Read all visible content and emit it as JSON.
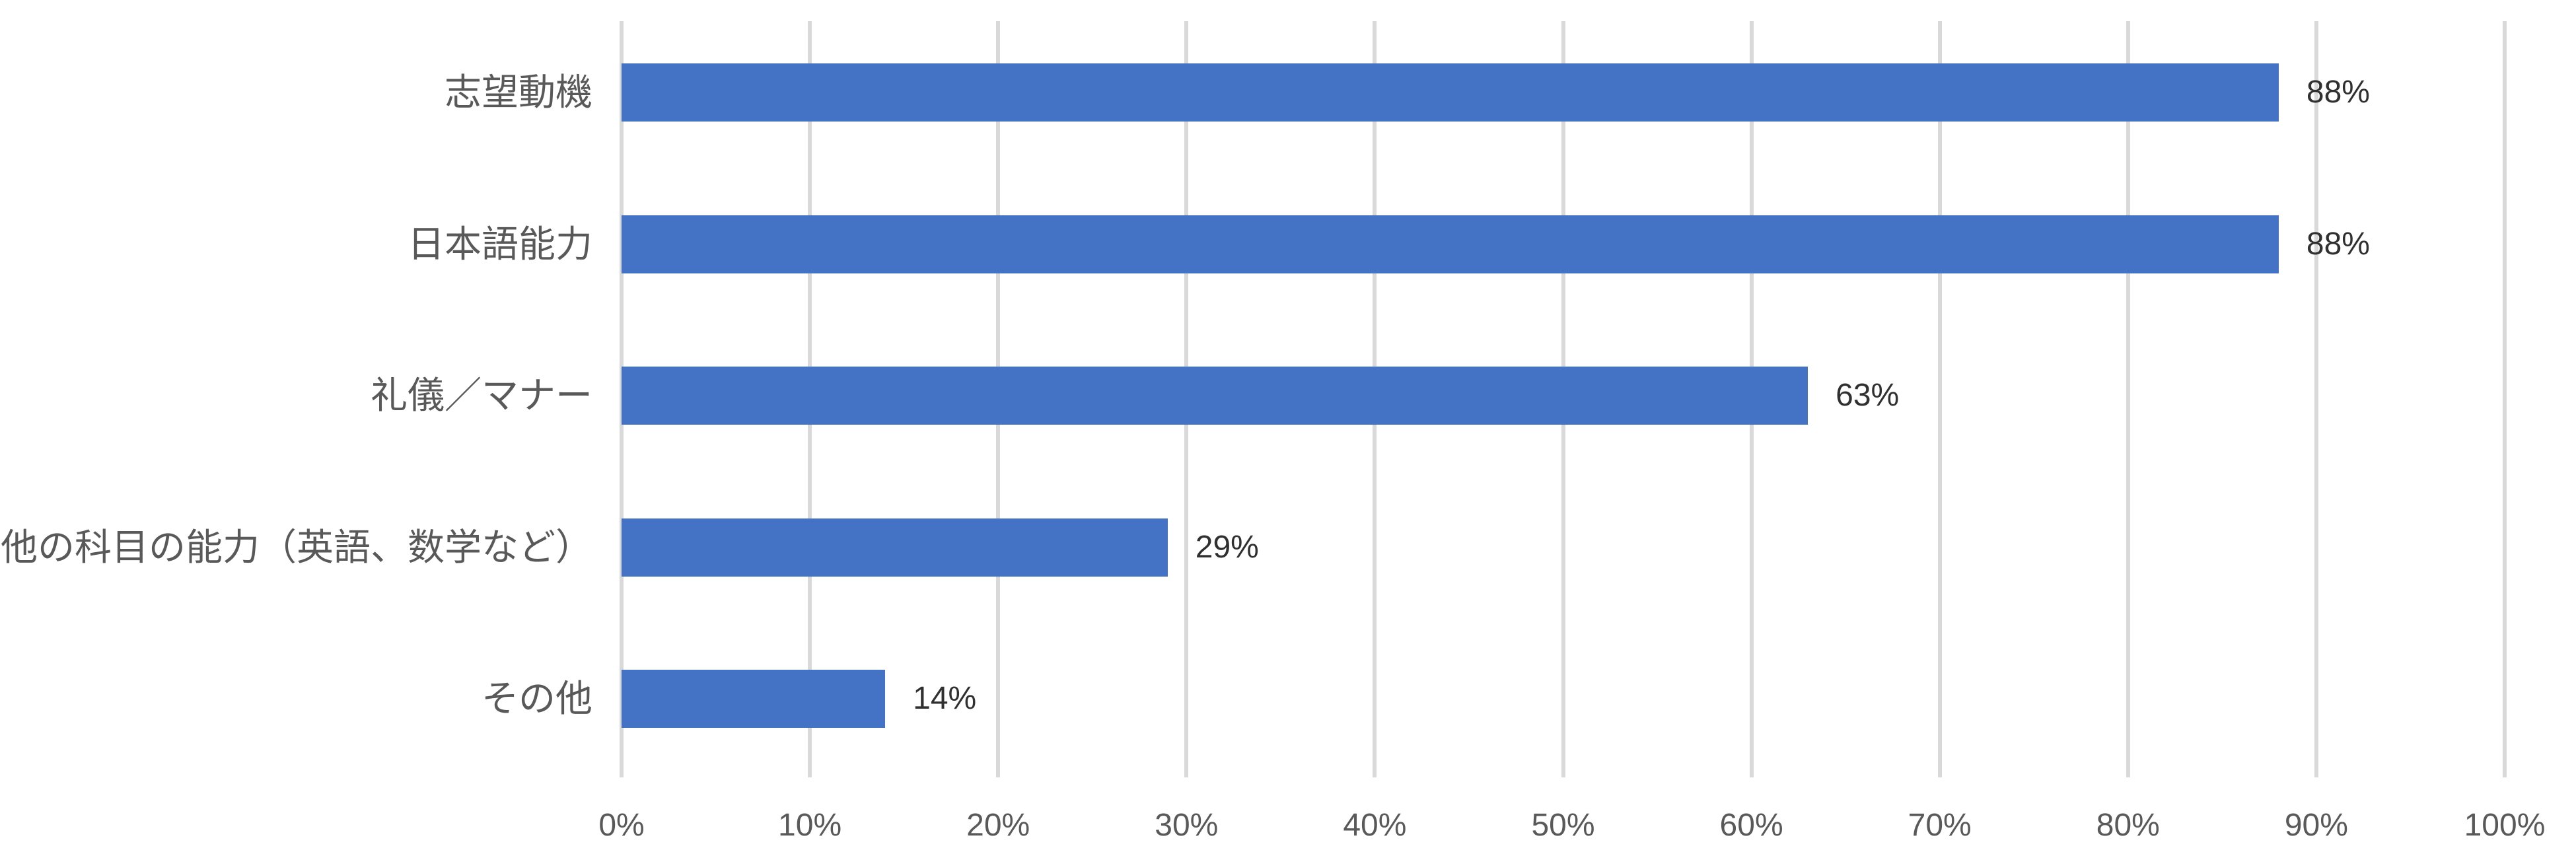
{
  "chart_data": {
    "type": "bar",
    "orientation": "horizontal",
    "title": "",
    "xlabel": "",
    "ylabel": "",
    "categories": [
      "志望動機",
      "日本語能力",
      "礼儀／マナー",
      "他の科目の能力（英語、数学など）",
      "その他"
    ],
    "values": [
      88,
      88,
      63,
      29,
      14
    ],
    "value_labels": [
      "88%",
      "88%",
      "63%",
      "29%",
      "14%"
    ],
    "xlim": [
      0,
      100
    ],
    "x_tick_values": [
      0,
      10,
      20,
      30,
      40,
      50,
      60,
      70,
      80,
      90,
      100
    ],
    "x_ticks": [
      "0%",
      "10%",
      "20%",
      "30%",
      "40%",
      "50%",
      "60%",
      "70%",
      "80%",
      "90%",
      "100%"
    ],
    "grid": "vertical-gridlines-on",
    "legend": "none",
    "colors": {
      "bar": "#4472C4",
      "gridline": "#D9D9D9",
      "axis_text": "#595959",
      "data_label": "#303030",
      "background": "#FFFFFF"
    }
  }
}
